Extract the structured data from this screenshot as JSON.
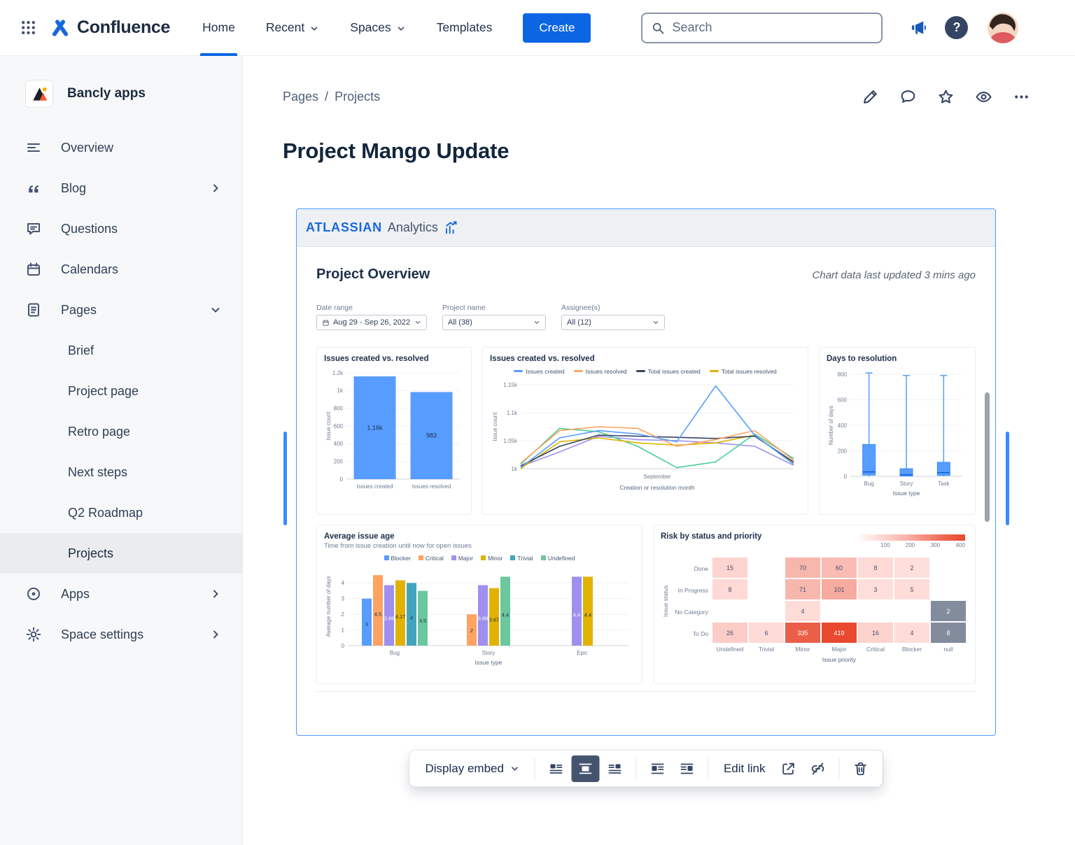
{
  "navbar": {
    "product": "Confluence",
    "items": [
      {
        "label": "Home",
        "active": true,
        "dropdown": false
      },
      {
        "label": "Recent",
        "active": false,
        "dropdown": true
      },
      {
        "label": "Spaces",
        "active": false,
        "dropdown": true
      },
      {
        "label": "Templates",
        "active": false,
        "dropdown": false
      }
    ],
    "create_label": "Create",
    "search_placeholder": "Search",
    "help_glyph": "?"
  },
  "sidebar": {
    "space_name": "Bancly apps",
    "items_top": [
      {
        "label": "Overview",
        "icon": "overview-icon"
      },
      {
        "label": "Blog",
        "icon": "blog-icon",
        "chevron": "right"
      },
      {
        "label": "Questions",
        "icon": "questions-icon"
      },
      {
        "label": "Calendars",
        "icon": "calendar-icon"
      },
      {
        "label": "Pages",
        "icon": "pages-icon",
        "chevron": "down"
      }
    ],
    "page_children": [
      {
        "label": "Brief",
        "selected": false
      },
      {
        "label": "Project page",
        "selected": false
      },
      {
        "label": "Retro page",
        "selected": false
      },
      {
        "label": "Next steps",
        "selected": false
      },
      {
        "label": "Q2 Roadmap",
        "selected": false
      },
      {
        "label": "Projects",
        "selected": true
      }
    ],
    "items_bottom": [
      {
        "label": "Apps",
        "icon": "apps-icon",
        "chevron": "right"
      },
      {
        "label": "Space settings",
        "icon": "settings-icon",
        "chevron": "right"
      }
    ]
  },
  "page": {
    "breadcrumb": [
      "Pages",
      "Projects"
    ],
    "breadcrumb_separator": "/",
    "title": "Project Mango Update"
  },
  "embed": {
    "brand": "ATLASSIAN",
    "brand_suffix": "Analytics",
    "heading": "Project Overview",
    "last_updated": "Chart data last updated 3 mins ago",
    "filters": [
      {
        "label": "Date range",
        "value": "Aug 29 - Sep 26, 2022",
        "icon": "calendar"
      },
      {
        "label": "Project name",
        "value": "All (38)",
        "icon": ""
      },
      {
        "label": "Assignee(s)",
        "value": "All (12)",
        "icon": ""
      }
    ]
  },
  "toolbar": {
    "display_label": "Display embed",
    "edit_link_label": "Edit link"
  },
  "chart_data": [
    {
      "id": "issues-created-vs-resolved-bar",
      "type": "bar",
      "title": "Issues created vs. resolved",
      "ylabel": "Issue count",
      "ylim": [
        0,
        1200
      ],
      "yticks": [
        {
          "v": 1200,
          "label": "1.2k"
        },
        {
          "v": 1000,
          "label": "1k"
        },
        {
          "v": 800,
          "label": "800"
        },
        {
          "v": 600,
          "label": "600"
        },
        {
          "v": 400,
          "label": "400"
        },
        {
          "v": 200,
          "label": "200"
        },
        {
          "v": 0,
          "label": "0"
        }
      ],
      "categories": [
        "Issues created",
        "Issues resolved"
      ],
      "values": [
        1160,
        983
      ],
      "value_labels": [
        "1.16k",
        "983"
      ],
      "bar_color": "#579dff"
    },
    {
      "id": "issues-created-vs-resolved-line",
      "type": "line",
      "title": "Issues created vs. resolved",
      "legend": [
        "Issues created",
        "Issues resolved",
        "Total issues created",
        "Total issues resolved"
      ],
      "legend_colors": [
        "#579dff",
        "#fea362",
        "#344563",
        "#e2b203"
      ],
      "ylabel": "Issue count",
      "ylim": [
        1000,
        1150
      ],
      "yticks": [
        {
          "v": 1150,
          "label": "1.15k"
        },
        {
          "v": 1100,
          "label": "1.1k"
        },
        {
          "v": 1050,
          "label": "1.05k"
        },
        {
          "v": 1000,
          "label": "1k"
        }
      ],
      "xtick": "September",
      "xlabel": "Creation or resolution month",
      "series": [
        {
          "name": "Issues created",
          "color": "#579dff",
          "values": [
            1002,
            1055,
            1068,
            1062,
            1048,
            1148,
            1060,
            1008
          ]
        },
        {
          "name": "Issues resolved",
          "color": "#fea362",
          "values": [
            1010,
            1068,
            1075,
            1072,
            1040,
            1052,
            1068,
            1015
          ]
        },
        {
          "name": "Total issues created",
          "color": "#344563",
          "values": [
            1005,
            1040,
            1060,
            1058,
            1056,
            1054,
            1058,
            1012
          ]
        },
        {
          "name": "Total issues resolved",
          "color": "#e2b203",
          "values": [
            1000,
            1048,
            1055,
            1046,
            1042,
            1046,
            1060,
            1010
          ]
        },
        {
          "name": "",
          "color": "#4bce97",
          "values": [
            1008,
            1072,
            1066,
            1040,
            1002,
            1012,
            1062,
            1018
          ]
        },
        {
          "name": "",
          "color": "#9f8fef",
          "values": [
            1004,
            1030,
            1058,
            1052,
            1050,
            1046,
            1040,
            1006
          ]
        }
      ]
    },
    {
      "id": "days-to-resolution",
      "type": "boxplot",
      "title": "Days to resolution",
      "ylabel": "Number of days",
      "xlabel": "Issue type",
      "ylim": [
        0,
        800
      ],
      "yticks": [
        {
          "v": 800,
          "label": "800"
        },
        {
          "v": 600,
          "label": "600"
        },
        {
          "v": 400,
          "label": "400"
        },
        {
          "v": 200,
          "label": "200"
        },
        {
          "v": 0,
          "label": "0"
        }
      ],
      "categories": [
        "Bug",
        "Story",
        "Task"
      ],
      "boxes": [
        {
          "min": 0,
          "q1": 10,
          "median": 35,
          "q3": 250,
          "max": 810
        },
        {
          "min": 0,
          "q1": 3,
          "median": 12,
          "q3": 60,
          "max": 790
        },
        {
          "min": 0,
          "q1": 8,
          "median": 30,
          "q3": 110,
          "max": 790
        }
      ],
      "box_color": "#579dff"
    },
    {
      "id": "average-issue-age",
      "type": "bar",
      "title": "Average issue age",
      "subtitle": "Time from issue creation until now for open issues",
      "ylabel": "Average number of days",
      "xlabel": "Issue type",
      "ylim": [
        0,
        5
      ],
      "yticks": [
        {
          "v": 4,
          "label": "4"
        },
        {
          "v": 3,
          "label": "3"
        },
        {
          "v": 2,
          "label": "2"
        },
        {
          "v": 1,
          "label": "1"
        },
        {
          "v": 0,
          "label": "0"
        }
      ],
      "categories": [
        "Bug",
        "Story",
        "Epic"
      ],
      "series": [
        {
          "name": "Blocker",
          "color": "#579dff",
          "values": [
            3,
            null,
            null
          ]
        },
        {
          "name": "Critical",
          "color": "#fea362",
          "values": [
            4.5,
            2,
            null
          ]
        },
        {
          "name": "Major",
          "color": "#9f8fef",
          "values": [
            3.86,
            3.86,
            4.4
          ]
        },
        {
          "name": "Minor",
          "color": "#e2b203",
          "values": [
            4.17,
            3.67,
            4.4
          ]
        },
        {
          "name": "Trivial",
          "color": "#42a5bd",
          "values": [
            4,
            null,
            null
          ]
        },
        {
          "name": "Undefined",
          "color": "#6cc79f",
          "values": [
            3.5,
            4.4,
            null
          ]
        }
      ]
    },
    {
      "id": "risk-by-status-and-priority",
      "type": "heatmap",
      "title": "Risk by status and priority",
      "ylabel": "Issue status",
      "xlabel": "Issue priority",
      "scale_ticks": [
        "100",
        "200",
        "300",
        "400"
      ],
      "scale_max": 419,
      "rows": [
        "Done",
        "In Progress",
        "No Category",
        "To Do"
      ],
      "columns": [
        "Undefined",
        "Trivial",
        "Minor",
        "Major",
        "Critical",
        "Blocker",
        "null"
      ],
      "values": [
        [
          15,
          null,
          70,
          60,
          8,
          2,
          null
        ],
        [
          8,
          null,
          71,
          101,
          3,
          5,
          null
        ],
        [
          null,
          null,
          4,
          null,
          null,
          null,
          2
        ],
        [
          26,
          6,
          335,
          419,
          16,
          4,
          8
        ]
      ],
      "gray_cells": [
        [
          2,
          6
        ],
        [
          3,
          6
        ]
      ]
    }
  ]
}
